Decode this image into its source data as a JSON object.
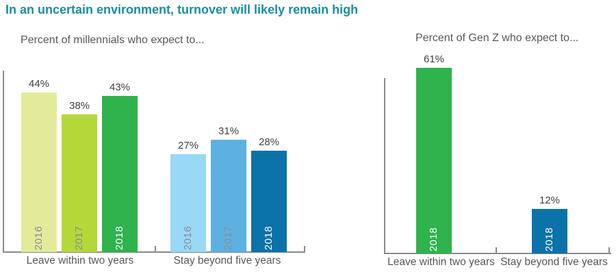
{
  "page": {
    "title": "In an uncertain environment, turnover will likely remain high"
  },
  "colors": {
    "title_teal": "#1a8e9e",
    "axis_gray": "#87898c",
    "value_label": "#414042",
    "category_label": "#55565a",
    "year_label_on_light_bar": "#8a8d8f",
    "year_label_on_dark_bar": "#ffffff"
  },
  "chart_data": [
    {
      "type": "bar",
      "title": "Percent of millennials who expect to...",
      "categories": [
        "Leave within two years",
        "Stay beyond five years"
      ],
      "series": [
        {
          "name": "2016",
          "values": [
            44,
            27
          ],
          "colors": [
            "#e3eb9b",
            "#99d8f7"
          ],
          "label_colors": [
            "#8a8d8f",
            "#8a8d8f"
          ]
        },
        {
          "name": "2017",
          "values": [
            38,
            31
          ],
          "colors": [
            "#b4d838",
            "#5cb1e2"
          ],
          "label_colors": [
            "#8a8d8f",
            "#8a8d8f"
          ]
        },
        {
          "name": "2018",
          "values": [
            43,
            28
          ],
          "colors": [
            "#2eb34d",
            "#0c72aa"
          ],
          "label_colors": [
            "#ffffff",
            "#ffffff"
          ]
        }
      ],
      "value_suffix": "%",
      "ylim": [
        0,
        50
      ],
      "grid": false,
      "legend": "none - years labeled vertically inside bars",
      "value_labels": [
        "44%",
        "38%",
        "43%",
        "27%",
        "31%",
        "28%"
      ]
    },
    {
      "type": "bar",
      "title": "Percent of Gen Z who expect to...",
      "categories": [
        "Leave within two years",
        "Stay beyond five years"
      ],
      "series": [
        {
          "name": "2018",
          "values": [
            61,
            12
          ],
          "colors": [
            "#2eb34d",
            "#0c72aa"
          ],
          "label_colors": [
            "#ffffff",
            "#ffffff"
          ]
        }
      ],
      "value_suffix": "%",
      "ylim": [
        0,
        65
      ],
      "grid": false,
      "legend": "none - year labeled vertically inside bars",
      "value_labels": [
        "61%",
        "12%"
      ]
    }
  ]
}
